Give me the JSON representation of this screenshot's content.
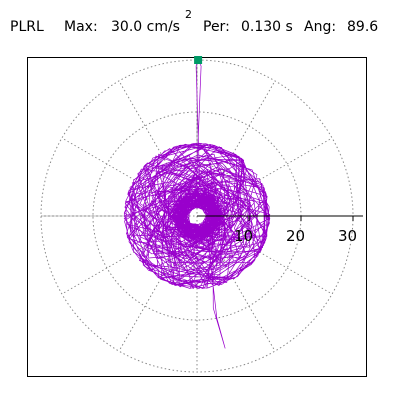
{
  "header": {
    "title": "PLRL",
    "max_label": "Max:",
    "max_value": "30.0 cm/s",
    "max_unit_sup": "2",
    "per_label": "Per:",
    "per_value": "0.130 s",
    "ang_label": "Ang:",
    "ang_value": "89.6"
  },
  "colors": {
    "trace": "#9900cc",
    "marker": "#009966",
    "grid": "#888888",
    "axis": "#000000"
  },
  "chart_data": {
    "type": "scatter",
    "title": "",
    "xlabel": "",
    "ylabel": "",
    "radial_ticks": [
      "10",
      "20",
      "30"
    ],
    "radial_range": [
      0,
      30
    ],
    "grid": true,
    "angular_spokes_deg": [
      0,
      30,
      60,
      90,
      120,
      150,
      180,
      210,
      240,
      270,
      300,
      330
    ],
    "peak": {
      "magnitude": 30.0,
      "angle_deg": 89.6
    },
    "trace_shape": "dense orbit cluster near origin with a long thin excursion toward 90 degrees and toward the lower-right"
  }
}
